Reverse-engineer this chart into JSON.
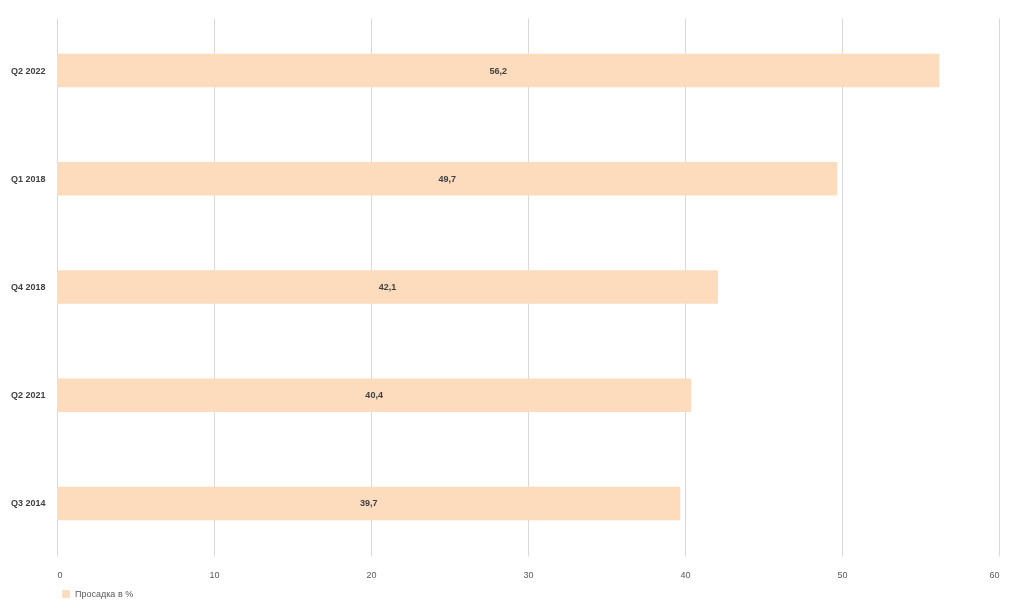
{
  "chart_data": {
    "type": "bar",
    "orientation": "horizontal",
    "categories": [
      "Q2 2022",
      "Q1 2018",
      "Q4 2018",
      "Q2 2021",
      "Q3 2014"
    ],
    "series": [
      {
        "name": "Просадка в %",
        "color": "#fcdcbc",
        "values": [
          56.2,
          49.7,
          42.1,
          40.4,
          39.7
        ],
        "value_labels": [
          "56,2",
          "49,7",
          "42,1",
          "40,4",
          "39,7"
        ]
      }
    ],
    "xlim": [
      0,
      60
    ],
    "xticks": [
      0,
      10,
      20,
      30,
      40,
      50,
      60
    ],
    "grid": "x",
    "legend": "bottom"
  }
}
